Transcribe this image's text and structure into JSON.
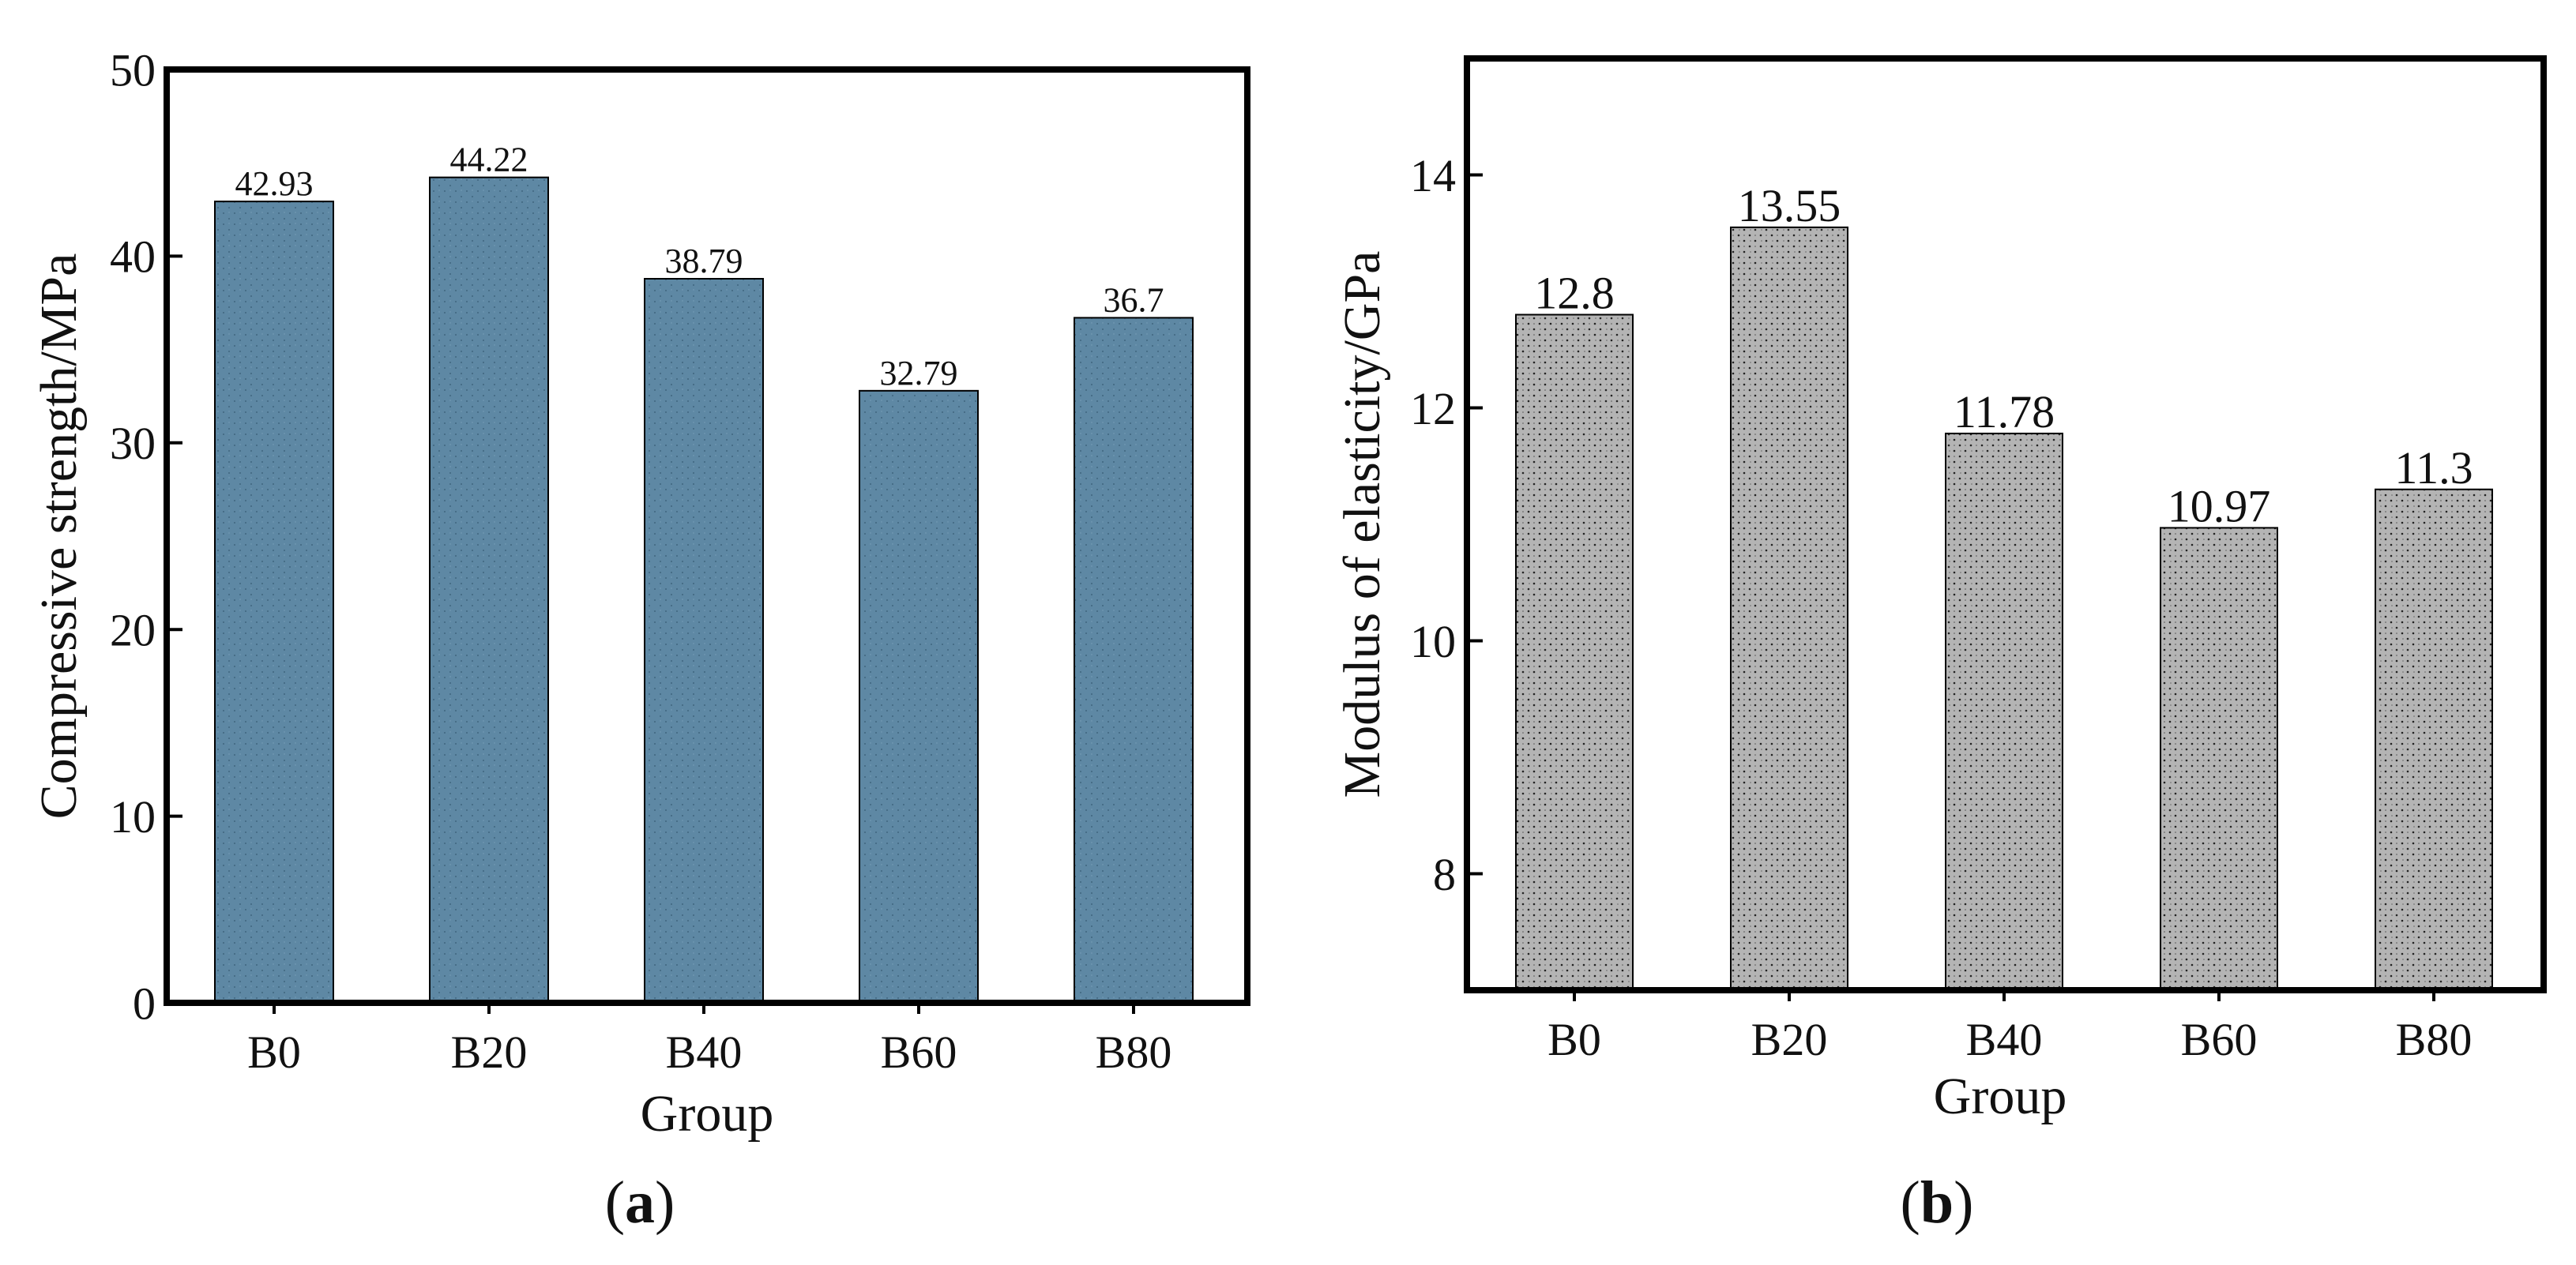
{
  "colors": {
    "bar_a": "#5e88a4",
    "bar_b": "#aaaaaa",
    "axis": "#000000"
  },
  "chart_data": [
    {
      "id": "a",
      "panel_label": "a",
      "type": "bar",
      "categories": [
        "B0",
        "B20",
        "B40",
        "B60",
        "B80"
      ],
      "values": [
        42.93,
        44.22,
        38.79,
        32.79,
        36.7
      ],
      "data_labels": [
        "42.93",
        "44.22",
        "38.79",
        "32.79",
        "36.7"
      ],
      "xlabel": "Group",
      "ylabel": "Compressive strength/MPa",
      "ylim": [
        0,
        50
      ],
      "yticks": [
        0,
        10,
        20,
        30,
        40,
        50
      ],
      "grid": false,
      "legend": "none"
    },
    {
      "id": "b",
      "panel_label": "b",
      "type": "bar",
      "categories": [
        "B0",
        "B20",
        "B40",
        "B60",
        "B80"
      ],
      "values": [
        12.8,
        13.55,
        11.78,
        10.97,
        11.3
      ],
      "data_labels": [
        "12.8",
        "13.55",
        "11.78",
        "10.97",
        "11.3"
      ],
      "xlabel": "Group",
      "ylabel": "Modulus of elasticity/GPa",
      "ylim": [
        7,
        15
      ],
      "yticks": [
        8,
        10,
        12,
        14
      ],
      "grid": false,
      "legend": "none"
    }
  ]
}
